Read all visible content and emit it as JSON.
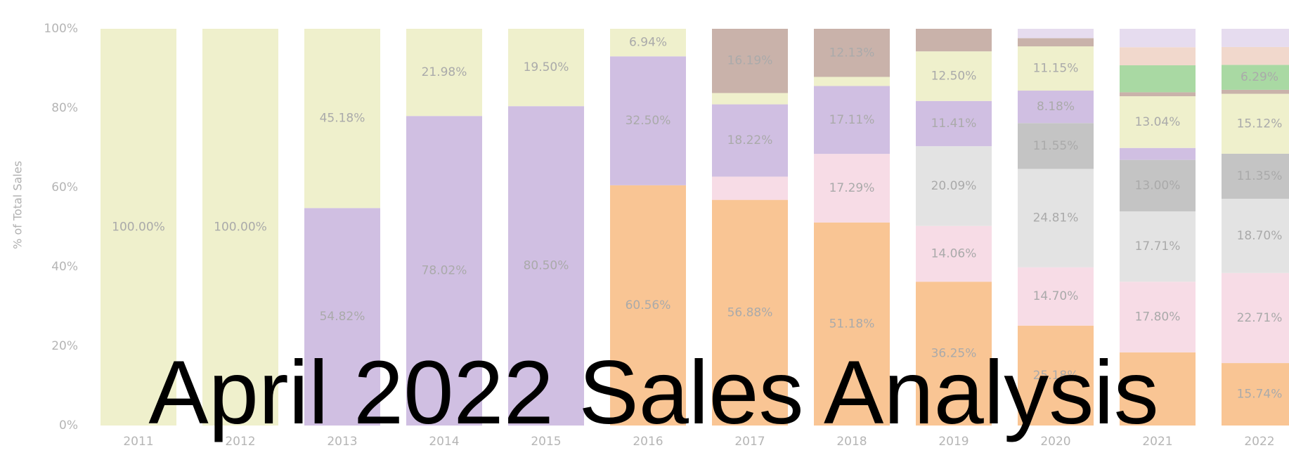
{
  "chart_data": {
    "type": "stacked_bar",
    "title": "April 2022 Sales Analysis",
    "y_label": "% of Total Sales",
    "categories": [
      "2011",
      "2012",
      "2013",
      "2014",
      "2015",
      "2016",
      "2017",
      "2018",
      "2019",
      "2020",
      "2021",
      "2022"
    ],
    "ylim": [
      0,
      100
    ],
    "yticks": [
      {
        "value": 0,
        "label": "0%"
      },
      {
        "value": 20,
        "label": "20%"
      },
      {
        "value": 40,
        "label": "40%"
      },
      {
        "value": 60,
        "label": "60%"
      },
      {
        "value": 80,
        "label": "80%"
      },
      {
        "value": 100,
        "label": "100%"
      }
    ],
    "grid": false,
    "series": [
      {
        "color": "#f9c594",
        "values": [
          null,
          null,
          null,
          null,
          null,
          60.56,
          56.88,
          51.18,
          36.25,
          25.18,
          18.45,
          15.74
        ],
        "value_labels": [
          null,
          null,
          null,
          null,
          null,
          "60.56%",
          "56.88%",
          "51.18%",
          "36.25%",
          "25.18%",
          null,
          "15.74%"
        ]
      },
      {
        "color": "#f7dce6",
        "values": [
          null,
          null,
          null,
          null,
          null,
          null,
          5.86,
          17.29,
          14.06,
          14.7,
          17.8,
          22.71
        ],
        "value_labels": [
          null,
          null,
          null,
          null,
          null,
          null,
          null,
          "17.29%",
          "14.06%",
          "14.70%",
          "17.80%",
          "22.71%"
        ]
      },
      {
        "color": "#e3e3e3",
        "values": [
          null,
          null,
          null,
          null,
          null,
          null,
          null,
          null,
          20.09,
          24.81,
          17.71,
          18.7
        ],
        "value_labels": [
          null,
          null,
          null,
          null,
          null,
          null,
          null,
          null,
          "20.09%",
          "24.81%",
          "17.71%",
          "18.70%"
        ]
      },
      {
        "color": "#c4c4c4",
        "values": [
          null,
          null,
          null,
          null,
          null,
          null,
          null,
          null,
          null,
          11.55,
          13.0,
          11.35
        ],
        "value_labels": [
          null,
          null,
          null,
          null,
          null,
          null,
          null,
          null,
          null,
          "11.55%",
          "13.00%",
          "11.35%"
        ]
      },
      {
        "color": "#d0bfe2",
        "values": [
          null,
          null,
          54.82,
          78.02,
          80.5,
          32.5,
          18.22,
          17.11,
          11.41,
          8.18,
          3.0,
          null
        ],
        "value_labels": [
          null,
          null,
          "54.82%",
          "78.02%",
          "80.50%",
          "32.50%",
          "18.22%",
          "17.11%",
          "11.41%",
          "8.18%",
          null,
          null
        ]
      },
      {
        "color": "#eff0cc",
        "values": [
          100,
          100,
          45.18,
          21.98,
          19.5,
          6.94,
          2.85,
          2.29,
          12.5,
          11.15,
          13.04,
          15.12
        ],
        "value_labels": [
          "100.00%",
          "100.00%",
          "45.18%",
          "21.98%",
          "19.50%",
          "6.94%",
          null,
          null,
          "12.50%",
          "11.15%",
          "13.04%",
          "15.12%"
        ]
      },
      {
        "color": "#c9b2aa",
        "values": [
          null,
          null,
          null,
          null,
          null,
          null,
          16.19,
          12.13,
          5.69,
          2.07,
          1.0,
          1.0
        ],
        "value_labels": [
          null,
          null,
          null,
          null,
          null,
          null,
          "16.19%",
          "12.13%",
          null,
          null,
          null,
          null
        ]
      },
      {
        "color": "#a9d9a3",
        "values": [
          null,
          null,
          null,
          null,
          null,
          null,
          null,
          null,
          null,
          null,
          6.8,
          6.29
        ],
        "value_labels": [
          null,
          null,
          null,
          null,
          null,
          null,
          null,
          null,
          null,
          null,
          null,
          "6.29%"
        ]
      },
      {
        "color": "#f1d8cc",
        "values": [
          null,
          null,
          null,
          null,
          null,
          null,
          null,
          null,
          null,
          null,
          4.55,
          4.5
        ],
        "value_labels": [
          null,
          null,
          null,
          null,
          null,
          null,
          null,
          null,
          null,
          null,
          null,
          null
        ]
      },
      {
        "color": "#e6dcef",
        "values": [
          null,
          null,
          null,
          null,
          null,
          null,
          null,
          null,
          null,
          2.36,
          4.65,
          4.59
        ],
        "value_labels": [
          null,
          null,
          null,
          null,
          null,
          null,
          null,
          null,
          null,
          null,
          null,
          null
        ]
      }
    ]
  }
}
